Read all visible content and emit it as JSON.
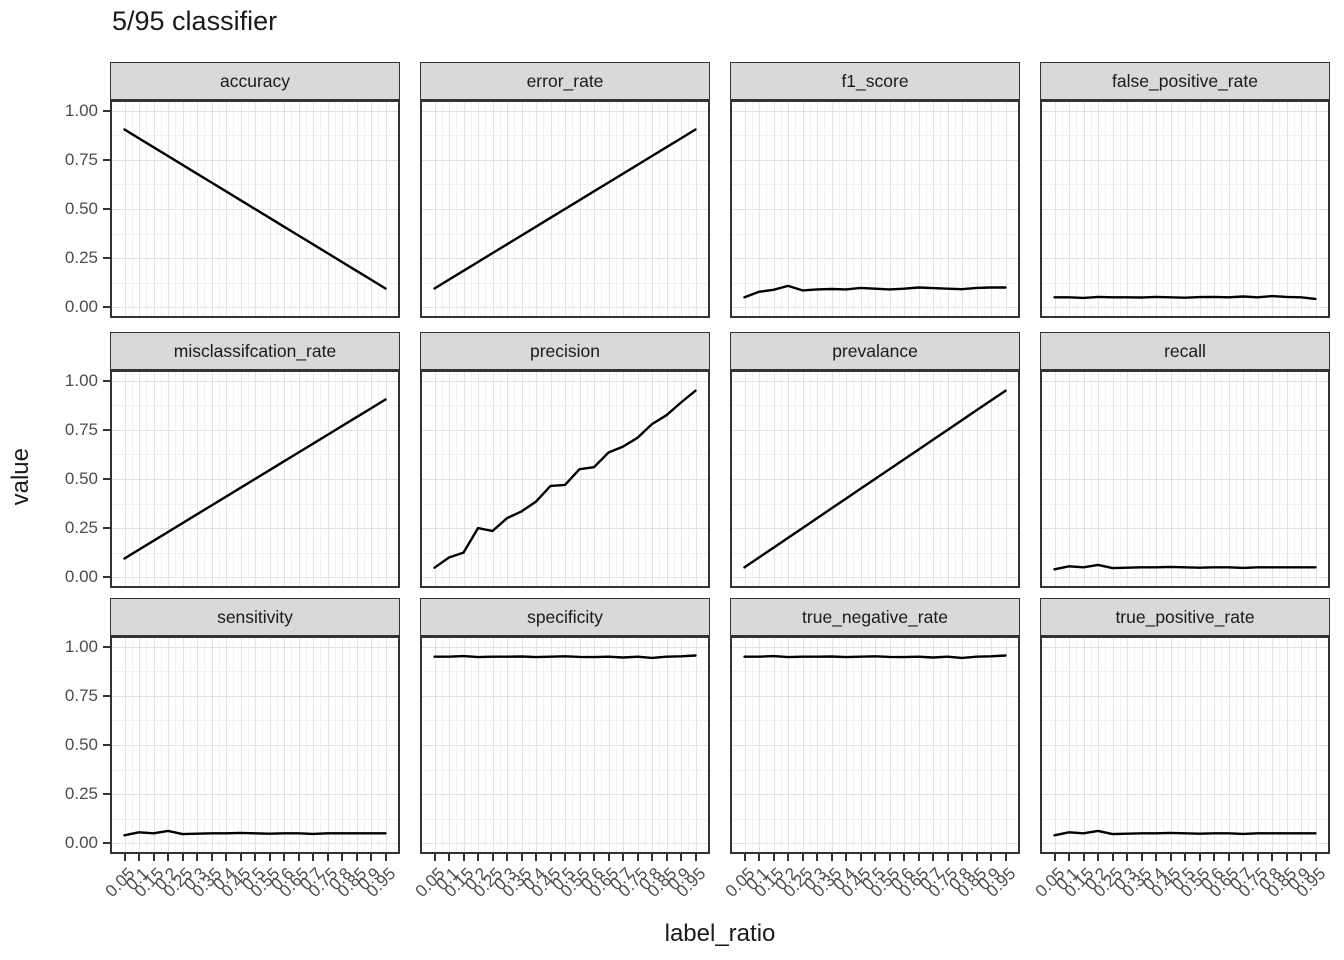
{
  "title": "5/95 classifier",
  "axes": {
    "x_title": "label_ratio",
    "y_title": "value",
    "y_tick_labels": [
      "1.00",
      "0.75",
      "0.50",
      "0.25",
      "0.00"
    ],
    "y_tick_values": [
      1.0,
      0.75,
      0.5,
      0.25,
      0.0
    ],
    "x_tick_labels": [
      "0.05",
      "0.1",
      "0.15",
      "0.2",
      "0.25",
      "0.3",
      "0.35",
      "0.4",
      "0.45",
      "0.5",
      "0.55",
      "0.6",
      "0.65",
      "0.7",
      "0.75",
      "0.8",
      "0.85",
      "0.9",
      "0.95"
    ]
  },
  "colors": {
    "line": "#000000",
    "strip_bg": "#d9d9d9",
    "strip_border": "#333333",
    "panel_border": "#333333",
    "grid_major": "#e2e2e2",
    "grid_minor": "#f1f1f1",
    "title_text": "#1a1a1a",
    "tick_text": "#4d4d4d"
  },
  "chart_data": {
    "type": "line",
    "title": "5/95 classifier",
    "xlabel": "label_ratio",
    "ylabel": "value",
    "xlim": [
      0.05,
      0.95
    ],
    "ylim": [
      0,
      1
    ],
    "grid": true,
    "legend": false,
    "x": [
      0.05,
      0.1,
      0.15,
      0.2,
      0.25,
      0.3,
      0.35,
      0.4,
      0.45,
      0.5,
      0.55,
      0.6,
      0.65,
      0.7,
      0.75,
      0.8,
      0.85,
      0.9,
      0.95
    ],
    "facets": [
      {
        "label": "accuracy",
        "values": [
          0.905,
          0.86,
          0.815,
          0.77,
          0.725,
          0.68,
          0.635,
          0.59,
          0.545,
          0.5,
          0.455,
          0.41,
          0.365,
          0.32,
          0.275,
          0.23,
          0.185,
          0.14,
          0.095
        ]
      },
      {
        "label": "error_rate",
        "values": [
          0.095,
          0.14,
          0.185,
          0.23,
          0.275,
          0.32,
          0.365,
          0.41,
          0.455,
          0.5,
          0.545,
          0.59,
          0.635,
          0.68,
          0.725,
          0.77,
          0.815,
          0.86,
          0.905
        ]
      },
      {
        "label": "f1_score",
        "values": [
          0.05,
          0.078,
          0.088,
          0.108,
          0.085,
          0.09,
          0.092,
          0.09,
          0.098,
          0.094,
          0.09,
          0.094,
          0.1,
          0.097,
          0.094,
          0.091,
          0.098,
          0.1,
          0.1
        ]
      },
      {
        "label": "false_positive_rate",
        "values": [
          0.05,
          0.05,
          0.047,
          0.052,
          0.05,
          0.05,
          0.049,
          0.052,
          0.05,
          0.048,
          0.051,
          0.052,
          0.05,
          0.054,
          0.05,
          0.056,
          0.052,
          0.05,
          0.042
        ]
      },
      {
        "label": "misclassifcation_rate",
        "values": [
          0.095,
          0.14,
          0.185,
          0.23,
          0.275,
          0.32,
          0.365,
          0.41,
          0.455,
          0.5,
          0.545,
          0.59,
          0.635,
          0.68,
          0.725,
          0.77,
          0.815,
          0.86,
          0.905
        ]
      },
      {
        "label": "precision",
        "values": [
          0.048,
          0.1,
          0.125,
          0.25,
          0.235,
          0.3,
          0.335,
          0.385,
          0.465,
          0.47,
          0.55,
          0.56,
          0.635,
          0.665,
          0.71,
          0.78,
          0.825,
          0.89,
          0.95
        ]
      },
      {
        "label": "prevalance",
        "values": [
          0.05,
          0.1,
          0.15,
          0.2,
          0.25,
          0.3,
          0.35,
          0.4,
          0.45,
          0.5,
          0.55,
          0.6,
          0.65,
          0.7,
          0.75,
          0.8,
          0.85,
          0.9,
          0.95
        ]
      },
      {
        "label": "recall",
        "values": [
          0.04,
          0.055,
          0.05,
          0.062,
          0.046,
          0.048,
          0.05,
          0.05,
          0.052,
          0.05,
          0.048,
          0.05,
          0.05,
          0.047,
          0.05,
          0.05,
          0.05,
          0.05,
          0.05
        ]
      },
      {
        "label": "sensitivity",
        "values": [
          0.04,
          0.055,
          0.05,
          0.062,
          0.046,
          0.048,
          0.05,
          0.05,
          0.052,
          0.05,
          0.048,
          0.05,
          0.05,
          0.047,
          0.05,
          0.05,
          0.05,
          0.05,
          0.05
        ]
      },
      {
        "label": "specificity",
        "values": [
          0.95,
          0.95,
          0.953,
          0.948,
          0.95,
          0.95,
          0.951,
          0.948,
          0.95,
          0.952,
          0.949,
          0.948,
          0.95,
          0.946,
          0.95,
          0.944,
          0.95,
          0.952,
          0.956
        ]
      },
      {
        "label": "true_negative_rate",
        "values": [
          0.95,
          0.95,
          0.953,
          0.948,
          0.95,
          0.95,
          0.951,
          0.948,
          0.95,
          0.952,
          0.949,
          0.948,
          0.95,
          0.946,
          0.95,
          0.944,
          0.95,
          0.952,
          0.956
        ]
      },
      {
        "label": "true_positive_rate",
        "values": [
          0.04,
          0.055,
          0.05,
          0.062,
          0.046,
          0.048,
          0.05,
          0.05,
          0.052,
          0.05,
          0.048,
          0.05,
          0.05,
          0.047,
          0.05,
          0.05,
          0.05,
          0.05,
          0.05
        ]
      }
    ]
  }
}
